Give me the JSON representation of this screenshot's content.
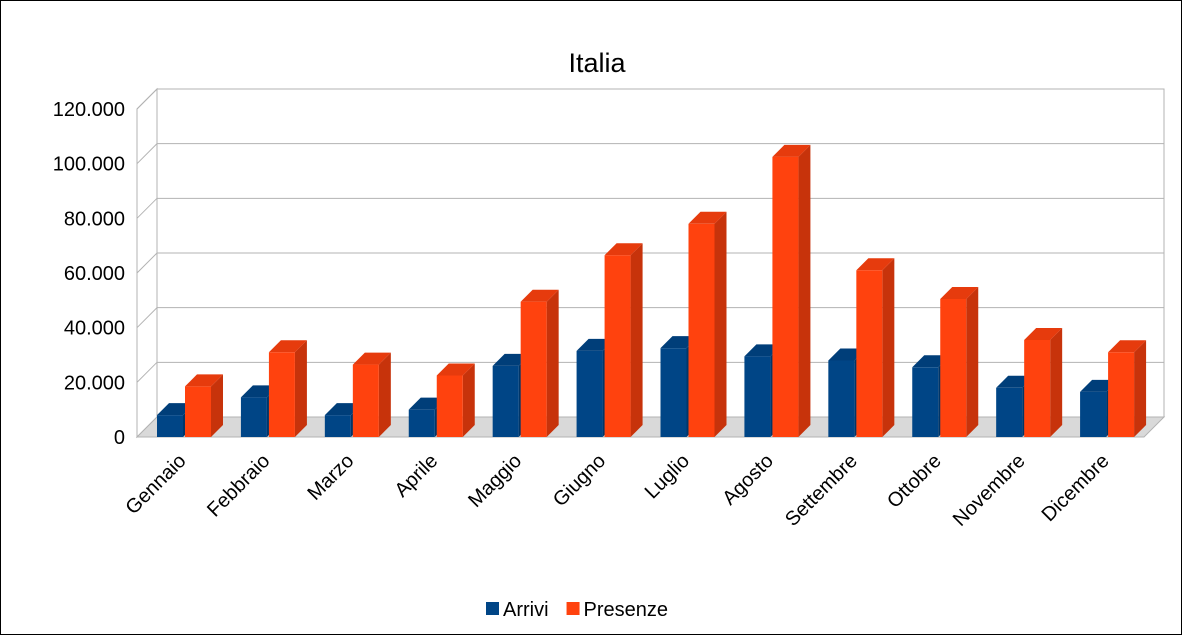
{
  "chart_data": {
    "type": "bar",
    "title": "Italia",
    "xlabel": "",
    "ylabel": "",
    "ylim": [
      0,
      120000
    ],
    "yticks": [
      0,
      20000,
      40000,
      60000,
      80000,
      100000,
      120000
    ],
    "ytick_labels": [
      "0",
      "20.000",
      "40.000",
      "60.000",
      "80.000",
      "100.000",
      "120.000"
    ],
    "grid": true,
    "legend_position": "bottom",
    "categories": [
      "Gennaio",
      "Febbraio",
      "Marzo",
      "Aprile",
      "Maggio",
      "Giugno",
      "Luglio",
      "Agosto",
      "Settembre",
      "Ottobre",
      "Novembre",
      "Dicembre"
    ],
    "series": [
      {
        "name": "Arrivi",
        "color": "#004586",
        "values": [
          8000,
          14500,
          8000,
          10000,
          26000,
          31500,
          32500,
          29500,
          28000,
          25500,
          18000,
          16500
        ]
      },
      {
        "name": "Presenze",
        "color": "#ff420e",
        "values": [
          18500,
          31000,
          26500,
          22500,
          49500,
          66500,
          78000,
          102500,
          61000,
          50500,
          35500,
          31000
        ]
      }
    ]
  }
}
